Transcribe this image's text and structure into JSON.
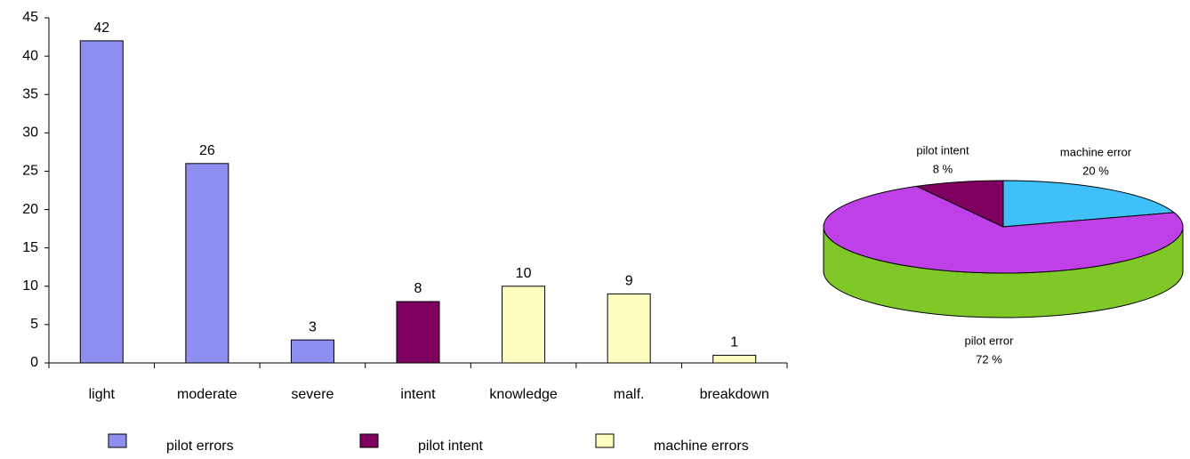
{
  "chart_data": [
    {
      "type": "bar",
      "categories": [
        "light",
        "moderate",
        "severe",
        "intent",
        "knowledge",
        "malf.",
        "breakdown"
      ],
      "series": [
        {
          "name": "pilot errors",
          "color": "#8e8ef0",
          "values": [
            42,
            26,
            3,
            null,
            null,
            null,
            null
          ]
        },
        {
          "name": "pilot intent",
          "color": "#800060",
          "values": [
            null,
            null,
            null,
            8,
            null,
            null,
            null
          ]
        },
        {
          "name": "machine errors",
          "color": "#ffffc0",
          "values": [
            null,
            null,
            null,
            null,
            10,
            9,
            1
          ]
        }
      ],
      "ylim": [
        0,
        45
      ],
      "yticks": [
        0,
        5,
        10,
        15,
        20,
        25,
        30,
        35,
        40,
        45
      ]
    },
    {
      "type": "pie",
      "categories": [
        "machine error",
        "pilot error",
        "pilot intent"
      ],
      "values": [
        20,
        72,
        8
      ],
      "value_labels": [
        "20 %",
        "72 %",
        "8 %"
      ],
      "colors": [
        "#40c0f8",
        "#c040e8",
        "#800060"
      ],
      "side_colors": [
        "#2090c0",
        "#80c828",
        "#500040"
      ]
    }
  ]
}
